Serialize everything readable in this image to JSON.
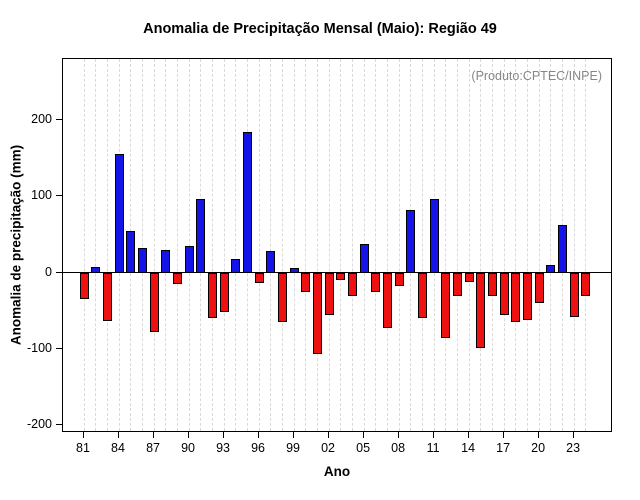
{
  "chart_data": {
    "type": "bar",
    "title": "Anomalia de Precipitação Mensal (Maio): Região 49",
    "subtitle": "(Produto:CPTEC/INPE)",
    "xlabel": "Ano",
    "ylabel": "Anomalia de precipitação (mm)",
    "ylim": [
      -210,
      280
    ],
    "y_ticks": [
      -200,
      -100,
      0,
      100,
      200
    ],
    "x_tick_every": 3,
    "x_tick_labels": [
      "81",
      "84",
      "87",
      "90",
      "93",
      "96",
      "99",
      "02",
      "05",
      "08",
      "11",
      "14",
      "17",
      "20",
      "23"
    ],
    "grid": "vertical-dashed",
    "legend": "none",
    "colors": {
      "positive": "#1414e8",
      "negative": "#ee1111"
    },
    "years": [
      1981,
      1982,
      1983,
      1984,
      1985,
      1986,
      1987,
      1988,
      1989,
      1990,
      1991,
      1992,
      1993,
      1994,
      1995,
      1996,
      1997,
      1998,
      1999,
      2000,
      2001,
      2002,
      2003,
      2004,
      2005,
      2006,
      2007,
      2008,
      2009,
      2010,
      2011,
      2012,
      2013,
      2014,
      2015,
      2016,
      2017,
      2018,
      2019,
      2020,
      2021,
      2022,
      2023,
      2024
    ],
    "values": [
      -35,
      8,
      -63,
      155,
      55,
      32,
      -78,
      30,
      -15,
      35,
      97,
      -60,
      -52,
      18,
      185,
      -13,
      28,
      -65,
      6,
      -25,
      -107,
      -55,
      -10,
      -30,
      38,
      -25,
      -72,
      -18,
      82,
      -60,
      96,
      -85,
      -30,
      -12,
      -98,
      -30,
      -55,
      -65,
      -62,
      -40,
      10,
      63,
      -58,
      -30
    ]
  }
}
